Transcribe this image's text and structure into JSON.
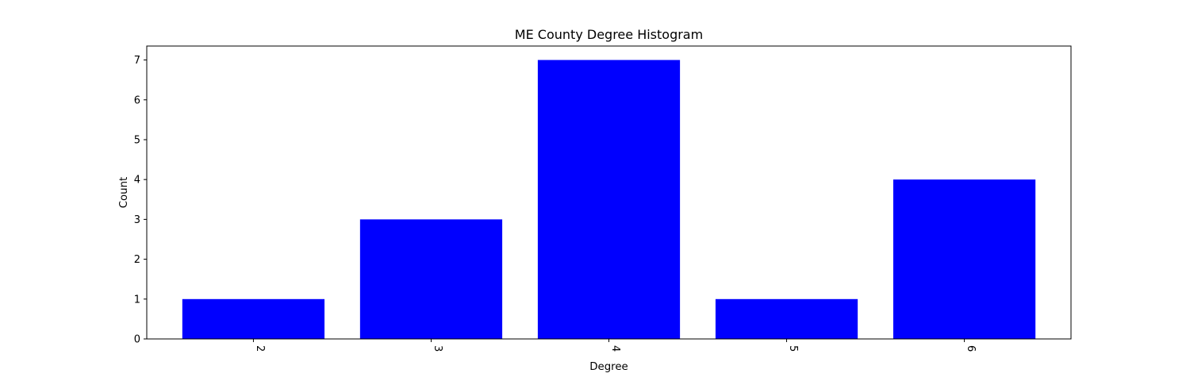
{
  "chart_data": {
    "type": "bar",
    "title": "ME County Degree Histogram",
    "xlabel": "Degree",
    "ylabel": "Count",
    "categories": [
      "2",
      "3",
      "4",
      "5",
      "6"
    ],
    "x": [
      2,
      3,
      4,
      5,
      6
    ],
    "values": [
      1,
      3,
      7,
      1,
      4
    ],
    "xlim": [
      1.4,
      6.6
    ],
    "ylim": [
      0,
      7.35
    ],
    "yticks": [
      "0",
      "1",
      "2",
      "3",
      "4",
      "5",
      "6",
      "7"
    ],
    "bar_width": 0.8,
    "xtick_rotation": "270",
    "bar_color": "#0000ff",
    "grid": false,
    "legend": "none"
  }
}
